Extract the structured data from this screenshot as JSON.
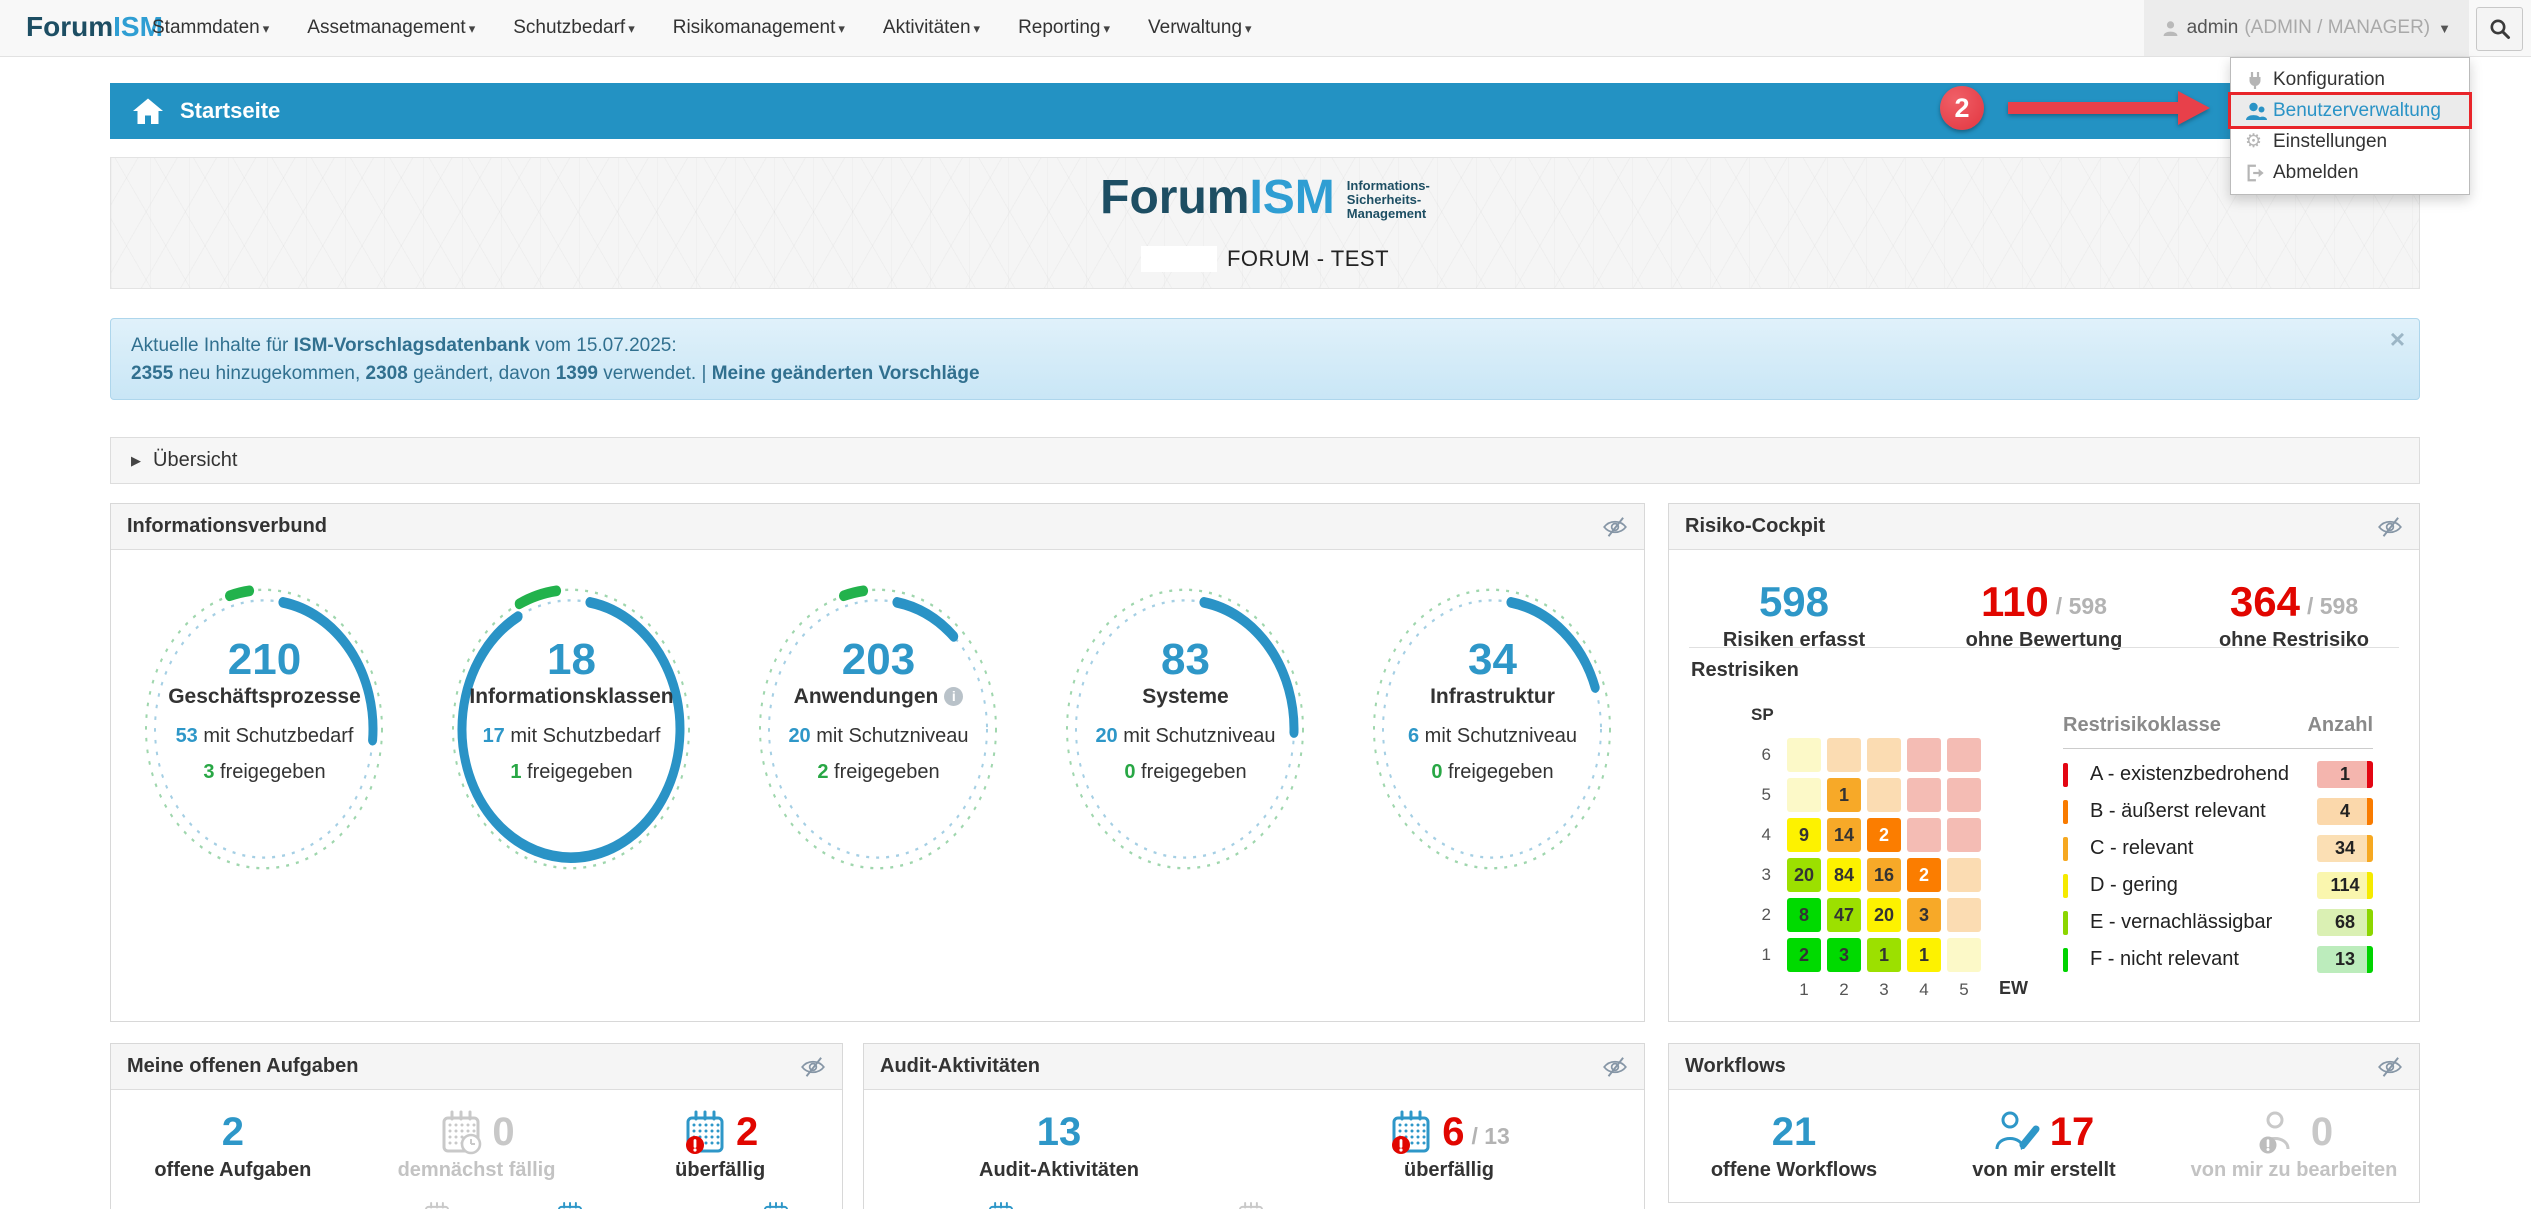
{
  "colors": {
    "accent_blue": "#2e97c8",
    "bar_blue": "#2392c3",
    "alert_red": "#e10600",
    "ok_green": "#28a745",
    "muted_gray": "#c8c8c8",
    "logo_dark": "#1d4e63",
    "logo_light": "#2f9ed3",
    "annotation_red": "#e8404a"
  },
  "nav": {
    "logo": {
      "part1": "Forum",
      "part2": "ISM"
    },
    "items": [
      {
        "label": "Stammdaten"
      },
      {
        "label": "Assetmanagement"
      },
      {
        "label": "Schutzbedarf"
      },
      {
        "label": "Risikomanagement"
      },
      {
        "label": "Aktivitäten"
      },
      {
        "label": "Reporting"
      },
      {
        "label": "Verwaltung"
      }
    ],
    "user": {
      "name": "admin",
      "roles": "(ADMIN / MANAGER)",
      "icon": "person-icon"
    },
    "search_icon": "magnifier-icon"
  },
  "user_menu": {
    "items": [
      {
        "label": "Konfiguration",
        "icon": "plug",
        "active": false
      },
      {
        "label": "Benutzerverwaltung",
        "icon": "users",
        "active": true
      },
      {
        "label": "Einstellungen",
        "icon": "gear",
        "active": false
      },
      {
        "label": "Abmelden",
        "icon": "sign-out",
        "active": false
      }
    ]
  },
  "annotation": {
    "step_number": "2"
  },
  "breadcrumb": {
    "title": "Startseite",
    "icon": "home-icon"
  },
  "hero": {
    "logo_part1": "Forum",
    "logo_part2": "ISM",
    "logo_side_lines": [
      "Informations-",
      "Sicherheits-",
      "Management"
    ],
    "subtitle": "FORUM - TEST"
  },
  "banner": {
    "line1": [
      {
        "t": "Aktuelle Inhalte für ",
        "b": false
      },
      {
        "t": "ISM-Vorschlagsdatenbank",
        "b": true
      },
      {
        "t": " vom 15.07.2025:",
        "b": false
      }
    ],
    "line2": [
      {
        "t": "2355",
        "b": true
      },
      {
        "t": " neu hinzugekommen, ",
        "b": false
      },
      {
        "t": "2308",
        "b": true
      },
      {
        "t": " geändert, davon ",
        "b": false
      },
      {
        "t": "1399",
        "b": true
      },
      {
        "t": " verwendet. | ",
        "b": false
      },
      {
        "t": "Meine geänderten Vorschläge",
        "b": true,
        "link": true
      }
    ],
    "close_icon": "×"
  },
  "overview": {
    "label": "Übersicht",
    "icon": "▶"
  },
  "panels": {
    "informationsverbund": {
      "title": "Informationsverbund",
      "eye_icon": "eye-slash",
      "gauges": [
        {
          "value": "210",
          "label": "Geschäftsprozesse",
          "sub1_value": "53",
          "sub1_label": " mit Schutzbedarf",
          "sub2_value": "3",
          "sub2_label": " freigegeben",
          "ratio_blue": 0.25,
          "ratio_green": 0.014,
          "info": false
        },
        {
          "value": "18",
          "label": "Informationsklassen",
          "sub1_value": "17",
          "sub1_label": " mit Schutzbedarf",
          "sub2_value": "1",
          "sub2_label": " freigegeben",
          "ratio_blue": 0.944,
          "ratio_green": 0.056,
          "info": false
        },
        {
          "value": "203",
          "label": "Anwendungen",
          "sub1_value": "20",
          "sub1_label": " mit Schutzniveau",
          "sub2_value": "2",
          "sub2_label": " freigegeben",
          "ratio_blue": 0.1,
          "ratio_green": 0.01,
          "info": true
        },
        {
          "value": "83",
          "label": "Systeme",
          "sub1_value": "20",
          "sub1_label": " mit Schutzniveau",
          "sub2_value": "0",
          "sub2_label": " freigegeben",
          "ratio_blue": 0.24,
          "ratio_green": 0,
          "info": false
        },
        {
          "value": "34",
          "label": "Infrastruktur",
          "sub1_value": "6",
          "sub1_label": " mit Schutzniveau",
          "sub2_value": "0",
          "sub2_label": " freigegeben",
          "ratio_blue": 0.18,
          "ratio_green": 0,
          "info": false
        }
      ]
    },
    "risiko_cockpit": {
      "title": "Risiko-Cockpit",
      "eye_icon": "eye-slash",
      "stats": [
        {
          "value": "598",
          "denominator": "",
          "label": "Risiken erfasst",
          "style": "blue"
        },
        {
          "value": "110",
          "denominator": "/ 598",
          "label": "ohne Bewertung",
          "style": "red"
        },
        {
          "value": "364",
          "denominator": "/ 598",
          "label": "ohne Restrisiko",
          "style": "red"
        }
      ],
      "restrisiken_title": "Restrisiken",
      "matrix": {
        "y_axis": "SP",
        "x_axis": "EW",
        "row_labels": [
          "6",
          "5",
          "4",
          "3",
          "2",
          "1"
        ],
        "col_labels": [
          "1",
          "2",
          "3",
          "4",
          "5"
        ],
        "values": [
          [
            "",
            "",
            "",
            "",
            ""
          ],
          [
            "",
            "1",
            "",
            "",
            ""
          ],
          [
            "9",
            "14",
            "2",
            "",
            ""
          ],
          [
            "20",
            "84",
            "16",
            "2",
            ""
          ],
          [
            "8",
            "47",
            "20",
            "3",
            ""
          ],
          [
            "2",
            "3",
            "1",
            "1",
            ""
          ]
        ],
        "cell_colors": [
          [
            "py",
            "po",
            "po",
            "pp",
            "pp"
          ],
          [
            "py",
            "o",
            "po",
            "pp",
            "pp"
          ],
          [
            "y",
            "o",
            "do",
            "pp",
            "pp"
          ],
          [
            "lg",
            "y",
            "o",
            "do",
            "po"
          ],
          [
            "g",
            "lg",
            "y",
            "o",
            "po"
          ],
          [
            "g",
            "g",
            "lg",
            "y",
            "py"
          ]
        ],
        "color_map": {
          "g": "#00da00",
          "lg": "#9ce000",
          "y": "#fdf200",
          "o": "#f7a928",
          "do": "#fb7d00",
          "py": "#fcf9c8",
          "po": "#fbdcb2",
          "pp": "#f4bcb4"
        },
        "white_text_colors": [
          "do"
        ]
      },
      "classes": {
        "header_class": "Restrisikoklasse",
        "header_count": "Anzahl",
        "rows": [
          {
            "label": "A - existenzbedrohend",
            "count": "1",
            "color": "#e30613",
            "badge_bg": "#f4b5ae"
          },
          {
            "label": "B - äußerst relevant",
            "count": "4",
            "color": "#f97b00",
            "badge_bg": "#fbd8ab"
          },
          {
            "label": "C - relevant",
            "count": "34",
            "color": "#f6a821",
            "badge_bg": "#fbdfb4"
          },
          {
            "label": "D - gering",
            "count": "114",
            "color": "#f5ea00",
            "badge_bg": "#faf6ae"
          },
          {
            "label": "E - vernachlässigbar",
            "count": "68",
            "color": "#8cd600",
            "badge_bg": "#daf0b3"
          },
          {
            "label": "F - nicht relevant",
            "count": "13",
            "color": "#00d300",
            "badge_bg": "#bcecbc"
          }
        ]
      }
    },
    "aufgaben": {
      "title": "Meine offenen Aufgaben",
      "eye_icon": "eye-slash",
      "stats": [
        {
          "value": "2",
          "denominator": "",
          "label": "offene Aufgaben",
          "style": "blue",
          "icon": ""
        },
        {
          "value": "0",
          "denominator": "",
          "label": "demnächst fällig",
          "style": "muted",
          "icon": "calendar-clock"
        },
        {
          "value": "2",
          "denominator": "",
          "label": "überfällig",
          "style": "red",
          "icon": "calendar-alert"
        }
      ]
    },
    "audit": {
      "title": "Audit-Aktivitäten",
      "eye_icon": "eye-slash",
      "stats": [
        {
          "value": "13",
          "denominator": "",
          "label": "Audit-Aktivitäten",
          "style": "blue",
          "icon": ""
        },
        {
          "value": "6",
          "denominator": "/ 13",
          "label": "überfällig",
          "style": "red",
          "icon": "calendar-alert"
        }
      ]
    },
    "workflows": {
      "title": "Workflows",
      "eye_icon": "eye-slash",
      "stats": [
        {
          "value": "21",
          "denominator": "",
          "label": "offene Workflows",
          "style": "blue",
          "icon": ""
        },
        {
          "value": "17",
          "denominator": "",
          "label": "von mir erstellt",
          "style": "red",
          "icon": "user-edit"
        },
        {
          "value": "0",
          "denominator": "",
          "label": "von mir zu bearbeiten",
          "style": "muted",
          "icon": "user-alert"
        }
      ]
    }
  }
}
